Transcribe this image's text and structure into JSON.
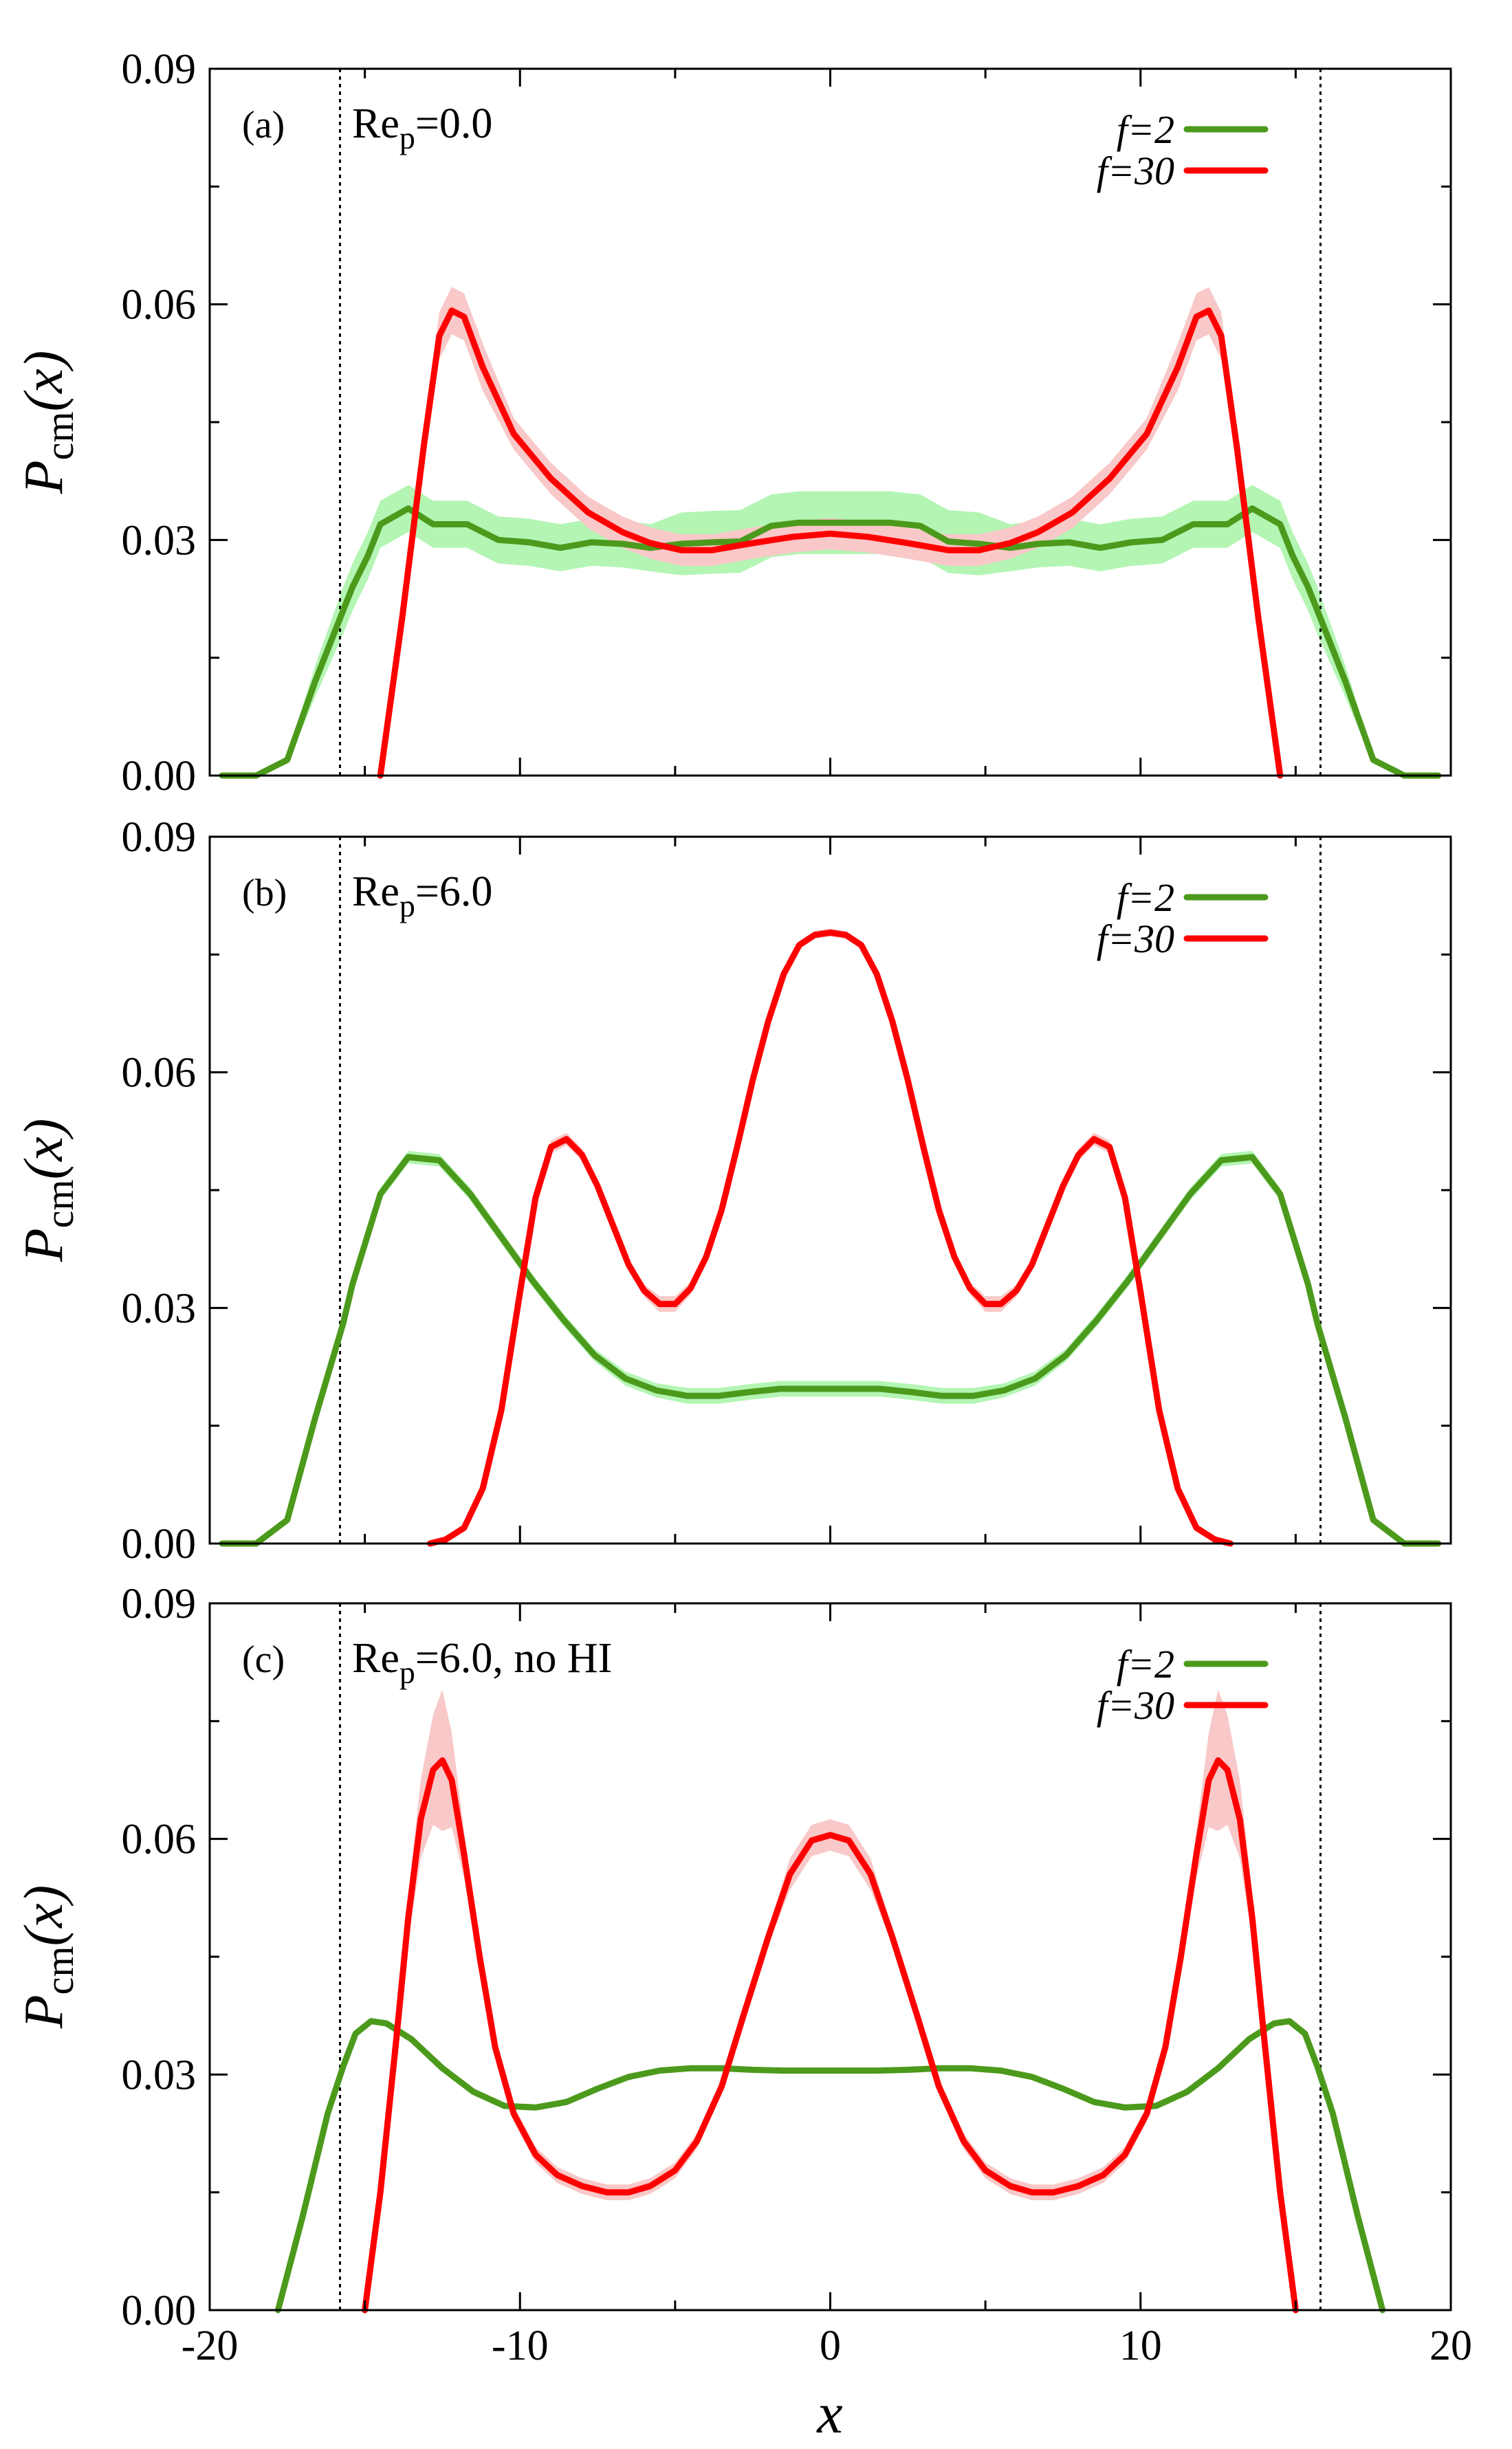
{
  "figure": {
    "xlabel": "x",
    "ylabel_main": "P",
    "ylabel_sub": "cm",
    "ylabel_arg": "(x)",
    "colors": {
      "f2": "#4c9a1c",
      "f30": "#ff0000",
      "f2_band": "#b4f5b4",
      "f30_band": "#f9c8c8",
      "walls": "#000000"
    },
    "legend": [
      "f=2",
      "f=30"
    ],
    "xticks": [
      "-20",
      "-10",
      "0",
      "10",
      "20"
    ],
    "yticks": [
      "0.00",
      "0.03",
      "0.06",
      "0.09"
    ],
    "wall_positions": [
      -15.8,
      15.8
    ]
  },
  "chart_data": [
    {
      "type": "line",
      "panel": "(a)",
      "label": "Re_p=0.0",
      "label_main": "Re",
      "label_sub": "p",
      "label_rest": "=0.0",
      "xlim": [
        -20,
        20
      ],
      "ylim": [
        0,
        0.09
      ],
      "series": [
        {
          "name": "f=2",
          "x": [
            -19.6,
            -18.5,
            -17.5,
            -16.6,
            -15.7,
            -15.4,
            -14.9,
            -14.5,
            -13.6,
            -12.8,
            -11.7,
            -10.7,
            -9.7,
            -8.7,
            -7.7,
            -6.7,
            -5.8,
            -4.8,
            -3.8,
            -2.9,
            -1.9,
            -1.0,
            0,
            1.0,
            1.9,
            2.9,
            3.8,
            4.8,
            5.8,
            6.7,
            7.7,
            8.7,
            9.7,
            10.7,
            11.7,
            12.8,
            13.6,
            14.5,
            14.9,
            15.4,
            15.7,
            16.6,
            17.5,
            18.5,
            19.6
          ],
          "y": [
            0.0,
            0.0,
            0.002,
            0.012,
            0.021,
            0.024,
            0.028,
            0.032,
            0.034,
            0.032,
            0.032,
            0.03,
            0.0297,
            0.029,
            0.0297,
            0.0295,
            0.029,
            0.0295,
            0.0297,
            0.0298,
            0.0318,
            0.0322,
            0.0322,
            0.0322,
            0.0322,
            0.0318,
            0.0298,
            0.0295,
            0.029,
            0.0295,
            0.0297,
            0.029,
            0.0297,
            0.03,
            0.032,
            0.032,
            0.034,
            0.032,
            0.028,
            0.024,
            0.021,
            0.012,
            0.002,
            0.0,
            0.0
          ],
          "band": [
            0.0,
            0.0,
            0.0005,
            0.002,
            0.003,
            0.003,
            0.003,
            0.003,
            0.003,
            0.003,
            0.003,
            0.003,
            0.003,
            0.003,
            0.003,
            0.003,
            0.003,
            0.004,
            0.004,
            0.004,
            0.004,
            0.004,
            0.004,
            0.004,
            0.004,
            0.004,
            0.004,
            0.004,
            0.003,
            0.003,
            0.003,
            0.003,
            0.003,
            0.003,
            0.003,
            0.003,
            0.003,
            0.003,
            0.003,
            0.003,
            0.003,
            0.002,
            0.0005,
            0.0,
            0.0
          ]
        },
        {
          "name": "f=30",
          "x": [
            -14.5,
            -13.8,
            -13.1,
            -12.6,
            -12.2,
            -11.8,
            -11.2,
            -10.2,
            -9.0,
            -7.8,
            -6.7,
            -5.8,
            -4.8,
            -3.8,
            -2.5,
            -1.2,
            0,
            1.2,
            2.5,
            3.8,
            4.8,
            5.8,
            6.7,
            7.8,
            9.0,
            10.2,
            11.2,
            11.8,
            12.2,
            12.6,
            13.1,
            13.8,
            14.5
          ],
          "y": [
            0.0,
            0.02,
            0.042,
            0.056,
            0.0592,
            0.0584,
            0.052,
            0.0435,
            0.0378,
            0.0335,
            0.031,
            0.0296,
            0.0287,
            0.0287,
            0.0296,
            0.0304,
            0.0308,
            0.0304,
            0.0296,
            0.0287,
            0.0287,
            0.0296,
            0.031,
            0.0335,
            0.0378,
            0.0435,
            0.052,
            0.0584,
            0.0592,
            0.056,
            0.042,
            0.02,
            0.0
          ],
          "band": [
            0.0,
            0.001,
            0.002,
            0.003,
            0.003,
            0.003,
            0.003,
            0.002,
            0.002,
            0.002,
            0.002,
            0.002,
            0.002,
            0.002,
            0.002,
            0.002,
            0.002,
            0.002,
            0.002,
            0.002,
            0.002,
            0.002,
            0.002,
            0.002,
            0.002,
            0.002,
            0.003,
            0.003,
            0.003,
            0.003,
            0.002,
            0.001,
            0.0
          ]
        }
      ]
    },
    {
      "type": "line",
      "panel": "(b)",
      "label": "Re_p=6.0",
      "label_main": "Re",
      "label_sub": "p",
      "label_rest": "=6.0",
      "xlim": [
        -20,
        20
      ],
      "ylim": [
        0,
        0.09
      ],
      "series": [
        {
          "name": "f=2",
          "x": [
            -19.6,
            -18.5,
            -17.5,
            -16.6,
            -15.7,
            -15.4,
            -14.5,
            -13.6,
            -12.6,
            -11.6,
            -10.6,
            -9.6,
            -8.6,
            -7.6,
            -6.6,
            -5.6,
            -4.6,
            -3.6,
            -2.6,
            -1.6,
            -0.6,
            0.6,
            1.6,
            2.6,
            3.6,
            4.6,
            5.6,
            6.6,
            7.6,
            8.6,
            9.6,
            10.6,
            11.6,
            12.6,
            13.6,
            14.5,
            15.4,
            15.7,
            16.6,
            17.5,
            18.5,
            19.6
          ],
          "y": [
            0.0,
            0.0,
            0.003,
            0.016,
            0.028,
            0.033,
            0.0445,
            0.0492,
            0.0488,
            0.0445,
            0.039,
            0.0335,
            0.0285,
            0.024,
            0.021,
            0.0195,
            0.0188,
            0.0188,
            0.0193,
            0.0197,
            0.0197,
            0.0197,
            0.0197,
            0.0193,
            0.0188,
            0.0188,
            0.0195,
            0.021,
            0.024,
            0.0285,
            0.0335,
            0.039,
            0.0445,
            0.0488,
            0.0492,
            0.0445,
            0.033,
            0.028,
            0.016,
            0.003,
            0.0,
            0.0
          ],
          "band": [
            0,
            0,
            0,
            0.0005,
            0.0008,
            0.0008,
            0.0008,
            0.0008,
            0.0008,
            0.0008,
            0.0008,
            0.0008,
            0.0008,
            0.0008,
            0.0009,
            0.0009,
            0.001,
            0.001,
            0.001,
            0.001,
            0.001,
            0.001,
            0.001,
            0.001,
            0.001,
            0.001,
            0.0009,
            0.0009,
            0.0008,
            0.0008,
            0.0008,
            0.0008,
            0.0008,
            0.0008,
            0.0008,
            0.0008,
            0.0008,
            0.0008,
            0.0005,
            0,
            0,
            0
          ]
        },
        {
          "name": "f=30",
          "x": [
            -12.9,
            -12.4,
            -11.8,
            -11.2,
            -10.6,
            -10.0,
            -9.5,
            -9.0,
            -8.5,
            -8.0,
            -7.5,
            -7.0,
            -6.5,
            -6.0,
            -5.5,
            -5.0,
            -4.5,
            -4.0,
            -3.5,
            -3.0,
            -2.5,
            -2.0,
            -1.5,
            -1.0,
            -0.5,
            0,
            0.5,
            1.0,
            1.5,
            2.0,
            2.5,
            3.0,
            3.5,
            4.0,
            4.5,
            5.0,
            5.5,
            6.0,
            6.5,
            7.0,
            7.5,
            8.0,
            8.5,
            9.0,
            9.5,
            10.0,
            10.6,
            11.2,
            11.8,
            12.4,
            12.9
          ],
          "y": [
            0.0,
            0.0005,
            0.002,
            0.007,
            0.017,
            0.032,
            0.044,
            0.0505,
            0.0515,
            0.0495,
            0.0455,
            0.0405,
            0.0355,
            0.0322,
            0.0305,
            0.0305,
            0.0325,
            0.0365,
            0.0425,
            0.0505,
            0.059,
            0.0665,
            0.0725,
            0.0762,
            0.0775,
            0.0778,
            0.0775,
            0.0762,
            0.0725,
            0.0665,
            0.059,
            0.0505,
            0.0425,
            0.0365,
            0.0325,
            0.0305,
            0.0305,
            0.0322,
            0.0355,
            0.0405,
            0.0455,
            0.0495,
            0.0515,
            0.0505,
            0.044,
            0.032,
            0.017,
            0.007,
            0.002,
            0.0005,
            0.0
          ],
          "band": [
            0,
            0,
            0,
            0,
            0,
            0,
            0,
            0.0008,
            0.0008,
            0.0008,
            0,
            0,
            0,
            0.0008,
            0.001,
            0.001,
            0.0008,
            0,
            0,
            0,
            0,
            0,
            0,
            0.0005,
            0.0005,
            0.0005,
            0.0005,
            0.0005,
            0,
            0,
            0,
            0,
            0,
            0,
            0.0008,
            0.001,
            0.001,
            0.0008,
            0,
            0,
            0,
            0.0008,
            0.0008,
            0.0008,
            0,
            0,
            0,
            0,
            0,
            0,
            0
          ]
        }
      ]
    },
    {
      "type": "line",
      "panel": "(c)",
      "label": "Re_p=6.0, no HI",
      "label_main": "Re",
      "label_sub": "p",
      "label_rest": "=6.0, no HI",
      "xlim": [
        -20,
        20
      ],
      "ylim": [
        0,
        0.09
      ],
      "series": [
        {
          "name": "f=2",
          "x": [
            -17.8,
            -17.0,
            -16.2,
            -15.7,
            -15.3,
            -14.8,
            -14.3,
            -13.5,
            -12.5,
            -11.5,
            -10.5,
            -9.5,
            -8.5,
            -7.5,
            -6.5,
            -5.5,
            -4.5,
            -3.5,
            -2.5,
            -1.5,
            -0.5,
            0.5,
            1.5,
            2.5,
            3.5,
            4.5,
            5.5,
            6.5,
            7.5,
            8.5,
            9.5,
            10.5,
            11.5,
            12.5,
            13.5,
            14.3,
            14.8,
            15.3,
            15.7,
            16.2,
            17.0,
            17.8
          ],
          "y": [
            0.0,
            0.012,
            0.025,
            0.031,
            0.0352,
            0.0368,
            0.0365,
            0.0345,
            0.0308,
            0.0278,
            0.026,
            0.0258,
            0.0265,
            0.0282,
            0.0297,
            0.0305,
            0.0308,
            0.0308,
            0.0306,
            0.0305,
            0.0305,
            0.0305,
            0.0305,
            0.0306,
            0.0308,
            0.0308,
            0.0305,
            0.0297,
            0.0282,
            0.0265,
            0.0258,
            0.026,
            0.0278,
            0.0308,
            0.0345,
            0.0365,
            0.0368,
            0.0352,
            0.031,
            0.025,
            0.012,
            0.0
          ],
          "band": [
            0,
            0,
            0,
            0,
            0,
            0,
            0,
            0,
            0,
            0,
            0,
            0,
            0,
            0,
            0,
            0,
            0,
            0,
            0,
            0,
            0,
            0,
            0,
            0,
            0,
            0,
            0,
            0,
            0,
            0,
            0,
            0,
            0,
            0,
            0,
            0,
            0,
            0,
            0,
            0,
            0,
            0
          ]
        },
        {
          "name": "f=30",
          "x": [
            -15.0,
            -14.5,
            -14.0,
            -13.6,
            -13.2,
            -12.8,
            -12.5,
            -12.2,
            -11.8,
            -11.3,
            -10.8,
            -10.2,
            -9.5,
            -8.8,
            -8.0,
            -7.2,
            -6.5,
            -5.8,
            -5.0,
            -4.3,
            -3.5,
            -2.8,
            -2.0,
            -1.3,
            -0.6,
            0,
            0.6,
            1.3,
            2.0,
            2.8,
            3.5,
            4.3,
            5.0,
            5.8,
            6.5,
            7.2,
            8.0,
            8.8,
            9.5,
            10.2,
            10.8,
            11.3,
            11.8,
            12.2,
            12.5,
            12.8,
            13.2,
            13.6,
            14.0,
            14.5,
            15.0
          ],
          "y": [
            0.0,
            0.015,
            0.034,
            0.05,
            0.0625,
            0.0688,
            0.07,
            0.0675,
            0.058,
            0.045,
            0.0335,
            0.025,
            0.0198,
            0.0172,
            0.0158,
            0.015,
            0.015,
            0.0158,
            0.0178,
            0.0215,
            0.0285,
            0.0375,
            0.0475,
            0.0555,
            0.0598,
            0.0605,
            0.0598,
            0.0555,
            0.0475,
            0.0375,
            0.0285,
            0.0215,
            0.0178,
            0.0158,
            0.015,
            0.015,
            0.0158,
            0.0172,
            0.0198,
            0.025,
            0.0335,
            0.045,
            0.058,
            0.0675,
            0.07,
            0.0688,
            0.0625,
            0.05,
            0.034,
            0.015,
            0.0
          ],
          "band": [
            0,
            0.001,
            0.002,
            0.003,
            0.005,
            0.007,
            0.009,
            0.006,
            0.003,
            0.002,
            0.001,
            0.001,
            0.001,
            0.001,
            0.001,
            0.001,
            0.001,
            0.001,
            0.001,
            0.001,
            0.001,
            0.001,
            0.001,
            0.002,
            0.002,
            0.002,
            0.002,
            0.002,
            0.001,
            0.001,
            0.001,
            0.001,
            0.001,
            0.001,
            0.001,
            0.001,
            0.001,
            0.001,
            0.001,
            0.001,
            0.001,
            0.002,
            0.003,
            0.006,
            0.009,
            0.007,
            0.005,
            0.003,
            0.002,
            0.001,
            0
          ]
        }
      ]
    }
  ]
}
